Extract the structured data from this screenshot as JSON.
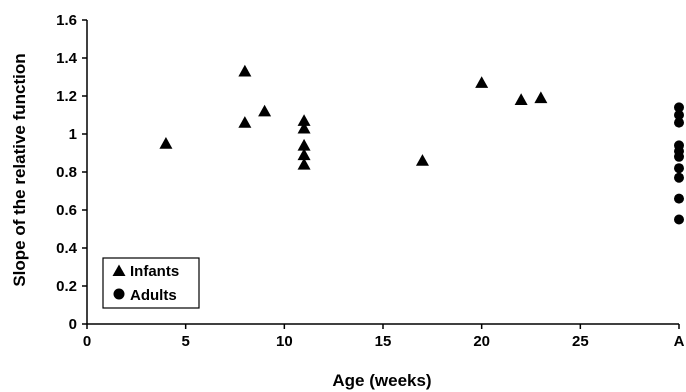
{
  "chart_data": {
    "type": "scatter",
    "title": "",
    "xlabel": "Age (weeks)",
    "ylabel": "Slope of the relative function",
    "xlim": [
      0,
      30
    ],
    "ylim": [
      0,
      1.6
    ],
    "x_ticks": [
      {
        "value": 0,
        "label": "0"
      },
      {
        "value": 5,
        "label": "5"
      },
      {
        "value": 10,
        "label": "10"
      },
      {
        "value": 15,
        "label": "15"
      },
      {
        "value": 20,
        "label": "20"
      },
      {
        "value": 25,
        "label": "25"
      },
      {
        "value": 30,
        "label": "A"
      }
    ],
    "y_ticks": [
      {
        "value": 0,
        "label": "0"
      },
      {
        "value": 0.2,
        "label": "0.2"
      },
      {
        "value": 0.4,
        "label": "0.4"
      },
      {
        "value": 0.6,
        "label": "0.6"
      },
      {
        "value": 0.8,
        "label": "0.8"
      },
      {
        "value": 1.0,
        "label": "1"
      },
      {
        "value": 1.2,
        "label": "1.2"
      },
      {
        "value": 1.4,
        "label": "1.4"
      },
      {
        "value": 1.6,
        "label": "1.6"
      }
    ],
    "grid": false,
    "legend": "bottom-left",
    "series": [
      {
        "name": "Infants",
        "marker": "triangle",
        "color": "#000000",
        "points": [
          {
            "x": 4,
            "y": 0.95
          },
          {
            "x": 8,
            "y": 1.33
          },
          {
            "x": 8,
            "y": 1.06
          },
          {
            "x": 9,
            "y": 1.12
          },
          {
            "x": 11,
            "y": 1.07
          },
          {
            "x": 11,
            "y": 1.03
          },
          {
            "x": 11,
            "y": 0.94
          },
          {
            "x": 11,
            "y": 0.89
          },
          {
            "x": 11,
            "y": 0.84
          },
          {
            "x": 17,
            "y": 0.86
          },
          {
            "x": 20,
            "y": 1.27
          },
          {
            "x": 22,
            "y": 1.18
          },
          {
            "x": 23,
            "y": 1.19
          }
        ]
      },
      {
        "name": "Adults",
        "marker": "circle",
        "color": "#000000",
        "points": [
          {
            "x": 30,
            "y": 1.14
          },
          {
            "x": 30,
            "y": 1.1
          },
          {
            "x": 30,
            "y": 1.06
          },
          {
            "x": 30,
            "y": 0.94
          },
          {
            "x": 30,
            "y": 0.91
          },
          {
            "x": 30,
            "y": 0.88
          },
          {
            "x": 30,
            "y": 0.82
          },
          {
            "x": 30,
            "y": 0.77
          },
          {
            "x": 30,
            "y": 0.66
          },
          {
            "x": 30,
            "y": 0.55
          }
        ]
      }
    ]
  }
}
